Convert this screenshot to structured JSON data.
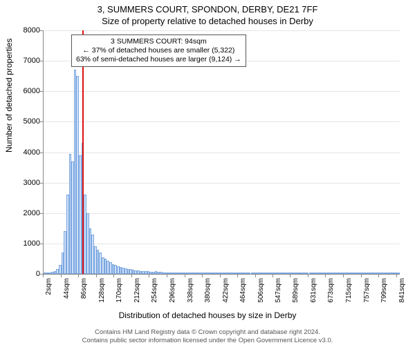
{
  "titles": {
    "line1": "3, SUMMERS COURT, SPONDON, DERBY, DE21 7FF",
    "line2": "Size of property relative to detached houses in Derby"
  },
  "chart": {
    "type": "histogram",
    "ylabel": "Number of detached properties",
    "xlabel": "Distribution of detached houses by size in Derby",
    "ylim": [
      0,
      8000
    ],
    "ytick_step": 1000,
    "bar_fill": "#cfe0f7",
    "bar_stroke": "#7aa6e0",
    "grid_color": "#e5e5e5",
    "axis_color": "#888888",
    "background_color": "#ffffff",
    "marker_color": "#dd1111",
    "marker_at_sqm": 94,
    "data_x_start": 2,
    "data_x_step": 6,
    "bars": [
      10,
      20,
      40,
      60,
      100,
      160,
      300,
      700,
      1400,
      2600,
      3950,
      3700,
      6700,
      6500,
      3900,
      4300,
      2600,
      2000,
      1500,
      1300,
      900,
      800,
      700,
      550,
      500,
      420,
      380,
      320,
      300,
      260,
      230,
      210,
      190,
      170,
      150,
      130,
      120,
      110,
      100,
      95,
      90,
      80,
      75,
      70,
      80,
      65,
      60,
      55,
      50,
      48,
      45,
      42,
      40,
      38,
      36,
      34,
      32,
      30,
      28,
      27,
      45,
      25,
      40,
      24,
      23,
      22,
      21,
      20,
      19,
      18,
      17,
      16,
      15,
      15,
      14,
      14,
      13,
      13,
      12,
      12,
      11,
      11,
      10,
      10,
      10,
      10,
      9,
      9,
      9,
      9,
      8,
      8,
      8,
      8,
      7,
      7,
      7,
      7,
      6,
      6,
      6,
      6,
      6,
      6,
      5,
      5,
      5,
      5,
      5,
      5,
      5,
      5,
      5,
      4,
      4,
      4,
      4,
      4,
      4,
      4,
      4,
      4,
      4,
      4,
      3,
      3,
      3,
      3,
      3,
      3,
      3,
      3,
      3,
      3,
      3,
      3,
      3,
      3,
      3,
      2,
      2
    ],
    "xticks": [
      "2sqm",
      "44sqm",
      "86sqm",
      "128sqm",
      "170sqm",
      "212sqm",
      "254sqm",
      "296sqm",
      "338sqm",
      "380sqm",
      "422sqm",
      "464sqm",
      "506sqm",
      "547sqm",
      "589sqm",
      "631sqm",
      "673sqm",
      "715sqm",
      "757sqm",
      "799sqm",
      "841sqm"
    ],
    "xtick_values": [
      2,
      44,
      86,
      128,
      170,
      212,
      254,
      296,
      338,
      380,
      422,
      464,
      506,
      547,
      589,
      631,
      673,
      715,
      757,
      799,
      841
    ]
  },
  "annotation": {
    "line1": "3 SUMMERS COURT: 94sqm",
    "line2": "← 37% of detached houses are smaller (5,322)",
    "line3": "63% of semi-detached houses are larger (9,124) →"
  },
  "footer": {
    "line1": "Contains HM Land Registry data © Crown copyright and database right 2024.",
    "line2": "Contains public sector information licensed under the Open Government Licence v3.0."
  }
}
